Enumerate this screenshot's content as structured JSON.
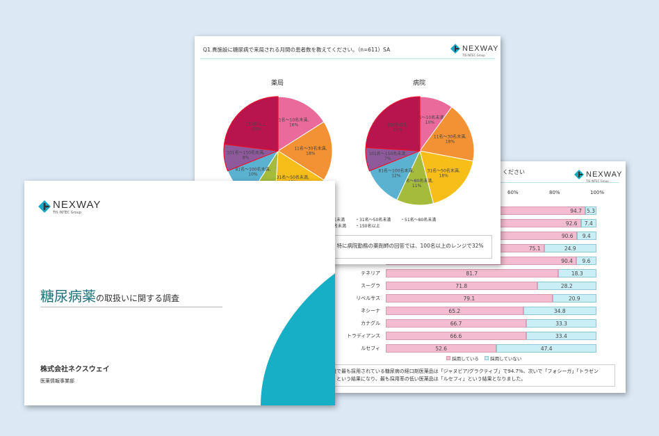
{
  "brand": {
    "name": "NEXWAY",
    "group": "TIS INTEC Group",
    "accent": "#1aa9c4"
  },
  "bar_slide": {
    "title_fragment": "ください",
    "axis_ticks": [
      "60%",
      "80%",
      "100%"
    ],
    "legend": [
      "採用している",
      "採用していない"
    ],
    "note_lines": [
      "設で最も採用されている糖尿病の経口剤医薬品は「ジャヌビア/グラクティブ」で94.7%、次いで「フォシーガ」「トラゼン",
      "」という結果になり、最も採用率の低い医薬品は「ルセフィ」という結果となりました。"
    ]
  },
  "pie_slide": {
    "title": "Q1.貴施設に糖尿病で来局される月間の患者数を教えてください。（n=611）SA",
    "legend_fragments": [
      "名未満",
      "・31名～50名未満",
      "・51名～80名未満",
      "0名未満",
      "・150名以上"
    ],
    "note_fragment": "、特に病院勤務の薬剤師の回答では、100名以上のレンジで32%"
  },
  "title_slide": {
    "title_main": "糖尿病薬",
    "title_rest": "の取扱いに関する調査",
    "company": "株式会社ネクスウェイ",
    "department": "医薬情報事業部"
  },
  "chart_data": [
    {
      "type": "pie",
      "title": "薬局",
      "categories": [
        "1名～10名未満",
        "11名～30名未満",
        "31名～50名未満",
        "51名～80名未満",
        "81名～100名未満",
        "101名～150名未満",
        "150名以上"
      ],
      "values": [
        16,
        18,
        17,
        8,
        10,
        8,
        23
      ],
      "labels": [
        "1名～10名未満, 16%",
        "11名～30名未満, 18%",
        "31名～50名未満, 17%",
        "",
        "81名～100名未満, 10%",
        "101名～150名未満, 8%",
        "150名以上, 23%"
      ],
      "colors": [
        "#ea6a9c",
        "#f39234",
        "#f7be1a",
        "#a4bb3c",
        "#5ab2d0",
        "#8e5a9c",
        "#b8154f"
      ]
    },
    {
      "type": "pie",
      "title": "病院",
      "categories": [
        "1名～10名未満",
        "11名～30名未満",
        "31名～50名未満",
        "51名～80名未満",
        "81名～100名未満",
        "101名～150名未満",
        "150名以上"
      ],
      "values": [
        10,
        18,
        18,
        11,
        12,
        7,
        24
      ],
      "labels": [
        "1名～10名未満, 10%",
        "11名～30名未満, 18%",
        "31名～50名未満, 18%",
        "51名～80名未満, 11%",
        "81名～100名未満, 12%",
        "101名～150名未満, 7%",
        "150名以上, 24%"
      ],
      "colors": [
        "#ea6a9c",
        "#f39234",
        "#f7be1a",
        "#a4bb3c",
        "#5ab2d0",
        "#8e5a9c",
        "#b8154f"
      ]
    },
    {
      "type": "bar",
      "stacked": true,
      "orientation": "horizontal",
      "xlim": [
        0,
        100
      ],
      "categories": [
        "",
        "",
        "",
        "",
        "",
        "テネリア",
        "スーグラ",
        "リベルサス",
        "ネシーナ",
        "カナグル",
        "トラディアンス",
        "ルセフィ"
      ],
      "series": [
        {
          "name": "採用している",
          "color": "#f4bcd0",
          "values": [
            94.7,
            92.6,
            90.6,
            75.1,
            90.4,
            81.7,
            71.8,
            79.1,
            65.2,
            66.7,
            66.6,
            52.6
          ]
        },
        {
          "name": "採用していない",
          "color": "#c9eef5",
          "values": [
            5.3,
            7.4,
            9.4,
            24.9,
            9.6,
            18.3,
            28.2,
            20.9,
            34.8,
            33.3,
            33.4,
            47.4
          ]
        }
      ]
    }
  ]
}
